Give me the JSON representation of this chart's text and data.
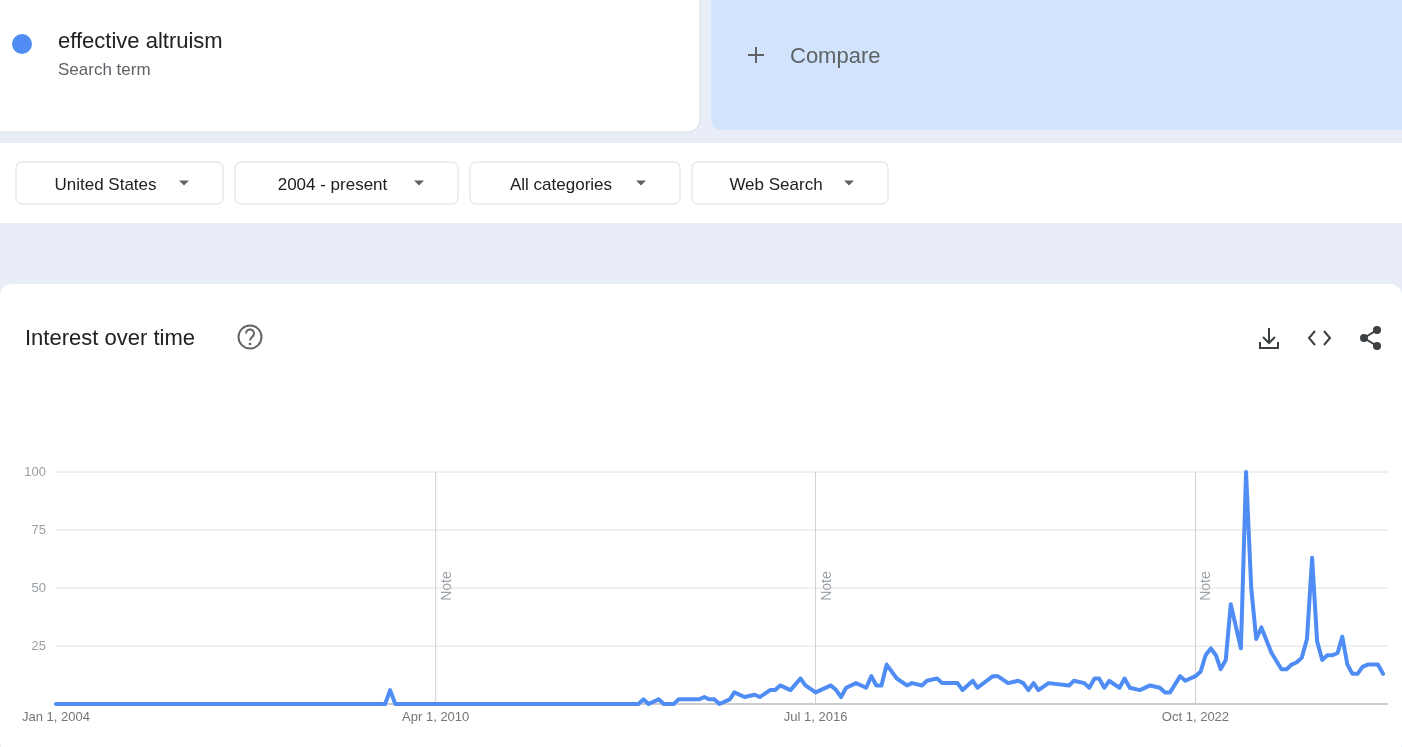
{
  "chart_data": {
    "type": "line",
    "title": "Interest over time",
    "legend": "top left",
    "grid": "y",
    "line_style": "solid",
    "marker": "none",
    "annotations": [
      "Search term",
      "Compare",
      "United States",
      "2004 - present",
      "All categories",
      "Web Search"
    ],
    "xlim": [
      "2004-01",
      "2025-12"
    ],
    "xticks": [
      {
        "value": "2004-01-01",
        "label": "Jan 1, 2004"
      },
      {
        "value": "2010-04-01",
        "label": "Apr 1, 2010"
      },
      {
        "value": "2016-07-01",
        "label": "Jul 1, 2016"
      },
      {
        "value": "2022-10-01",
        "label": "Oct 1, 2022"
      }
    ],
    "ylim": [
      0,
      100
    ],
    "yticks": [
      25,
      50,
      75,
      100
    ],
    "ref_lines": [
      {
        "axis": "x",
        "value": "2010-04-01",
        "label": "Note"
      },
      {
        "axis": "x",
        "value": "2016-07-01",
        "label": "Note"
      },
      {
        "axis": "x",
        "value": "2022-10-01",
        "label": "Note"
      }
    ],
    "series": [
      {
        "name": "effective altruism",
        "color": "#4f8df5",
        "x": [
          "2004-01",
          "2009-06",
          "2009-07",
          "2009-08",
          "2013-08",
          "2013-09",
          "2013-10",
          "2013-12",
          "2014-01",
          "2014-03",
          "2014-04",
          "2014-08",
          "2014-09",
          "2014-10",
          "2014-11",
          "2014-12",
          "2015-02",
          "2015-03",
          "2015-05",
          "2015-07",
          "2015-08",
          "2015-10",
          "2015-11",
          "2015-12",
          "2016-02",
          "2016-04",
          "2016-05",
          "2016-07",
          "2016-10",
          "2016-11",
          "2016-12",
          "2017-01",
          "2017-03",
          "2017-05",
          "2017-06",
          "2017-07",
          "2017-08",
          "2017-09",
          "2017-11",
          "2018-01",
          "2018-02",
          "2018-04",
          "2018-05",
          "2018-07",
          "2018-08",
          "2018-11",
          "2018-12",
          "2019-02",
          "2019-03",
          "2019-06",
          "2019-07",
          "2019-09",
          "2019-11",
          "2019-12",
          "2020-01",
          "2020-02",
          "2020-03",
          "2020-05",
          "2020-09",
          "2020-10",
          "2020-12",
          "2021-01",
          "2021-02",
          "2021-03",
          "2021-04",
          "2021-05",
          "2021-07",
          "2021-08",
          "2021-09",
          "2021-11",
          "2022-01",
          "2022-03",
          "2022-04",
          "2022-05",
          "2022-07",
          "2022-08",
          "2022-10",
          "2022-11",
          "2022-12",
          "2023-01",
          "2023-02",
          "2023-03",
          "2023-04",
          "2023-05",
          "2023-07",
          "2023-08",
          "2023-09",
          "2023-10",
          "2023-11",
          "2024-01",
          "2024-03",
          "2024-04",
          "2024-05",
          "2024-06",
          "2024-07",
          "2024-08",
          "2024-09",
          "2024-10",
          "2024-11",
          "2024-12",
          "2025-01",
          "2025-02",
          "2025-03",
          "2025-04",
          "2025-05",
          "2025-06",
          "2025-07",
          "2025-08",
          "2025-10",
          "2025-11"
        ],
        "values": [
          0,
          0,
          6,
          0,
          0,
          2,
          0,
          2,
          0,
          0,
          2,
          2,
          3,
          2,
          2,
          0,
          2,
          5,
          3,
          4,
          3,
          6,
          6,
          8,
          6,
          11,
          8,
          5,
          8,
          6,
          3,
          7,
          9,
          7,
          12,
          8,
          8,
          17,
          11,
          8,
          9,
          8,
          10,
          11,
          9,
          9,
          6,
          10,
          7,
          12,
          12,
          9,
          10,
          9,
          6,
          9,
          6,
          9,
          8,
          10,
          9,
          7,
          11,
          11,
          7,
          10,
          7,
          11,
          7,
          6,
          8,
          7,
          5,
          5,
          12,
          10,
          12,
          14,
          21,
          24,
          21,
          15,
          19,
          43,
          24,
          100,
          50,
          28,
          33,
          22,
          15,
          15,
          17,
          18,
          20,
          28,
          63,
          27,
          19,
          21,
          21,
          22,
          29,
          17,
          13,
          13,
          16,
          17,
          17,
          13
        ]
      }
    ]
  }
}
